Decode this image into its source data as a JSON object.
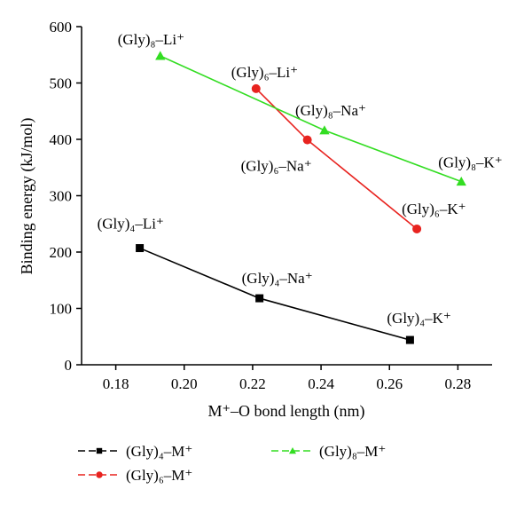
{
  "chart_data": {
    "type": "line",
    "title": "",
    "xlabel": "M⁺–O bond length (nm)",
    "ylabel": "Binding energy (kJ/mol)",
    "xlim": [
      0.17,
      0.29
    ],
    "ylim": [
      0,
      600
    ],
    "xticks": [
      "0.18",
      "0.20",
      "0.22",
      "0.24",
      "0.26",
      "0.28"
    ],
    "yticks": [
      "0",
      "100",
      "200",
      "300",
      "400",
      "500",
      "600"
    ],
    "grid": false,
    "legend_position": "bottom",
    "series": [
      {
        "name": "(Gly)₄–M⁺",
        "color": "#000000",
        "marker": "square",
        "x": [
          0.187,
          0.222,
          0.266
        ],
        "y": [
          207,
          118,
          44
        ],
        "labels": [
          "(Gly)₄–Li⁺",
          "(Gly)₄–Na⁺",
          "(Gly)₄–K⁺"
        ]
      },
      {
        "name": "(Gly)₆–M⁺",
        "color": "#e8231f",
        "marker": "circle",
        "x": [
          0.221,
          0.236,
          0.268
        ],
        "y": [
          490,
          399,
          241
        ],
        "labels": [
          "(Gly)₆–Li⁺",
          "(Gly)₆–Na⁺",
          "(Gly)₆–K⁺"
        ]
      },
      {
        "name": "(Gly)₈–M⁺",
        "color": "#33dd22",
        "marker": "triangle",
        "x": [
          0.193,
          0.241,
          0.281
        ],
        "y": [
          548,
          416,
          325
        ],
        "labels": [
          "(Gly)₈–Li⁺",
          "(Gly)₈–Na⁺",
          "(Gly)₈–K⁺"
        ]
      }
    ]
  }
}
